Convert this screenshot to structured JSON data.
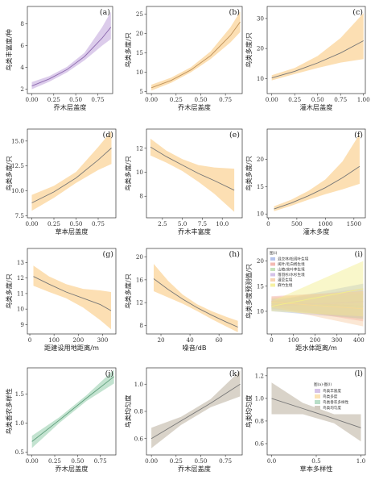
{
  "chart_data": [
    {
      "label": "(a)",
      "type": "line",
      "xlabel": "乔木层盖度",
      "ylabel": "鸟类丰富度/种",
      "xlim": [
        -0.05,
        0.92
      ],
      "ylim": [
        1.6,
        9.6
      ],
      "xticks": [
        0,
        0.25,
        0.5,
        0.75
      ],
      "xtick_labels": [
        "0.00",
        "0.25",
        "0.50",
        "0.75"
      ],
      "yticks": [
        2,
        4,
        6,
        8
      ],
      "ytick_labels": [
        "2",
        "4",
        "6",
        "8"
      ],
      "fill": "#d6c3e8",
      "line": "#8e6bb0",
      "x": [
        0,
        0.2,
        0.4,
        0.6,
        0.8,
        0.9
      ],
      "y": [
        2.3,
        2.95,
        3.8,
        5.0,
        6.7,
        7.7
      ],
      "lower": [
        2.0,
        2.7,
        3.55,
        4.65,
        6.0,
        6.6
      ],
      "upper": [
        2.65,
        3.2,
        4.05,
        5.35,
        7.7,
        9.1
      ]
    },
    {
      "label": "(b)",
      "type": "line",
      "xlabel": "乔木层盖度",
      "ylabel": "鸟类多度/只",
      "xlim": [
        -0.05,
        0.92
      ],
      "ylim": [
        4.5,
        27
      ],
      "xticks": [
        0,
        0.25,
        0.5,
        0.75
      ],
      "xtick_labels": [
        "0.00",
        "0.25",
        "0.50",
        "0.75"
      ],
      "yticks": [
        5,
        10,
        15,
        20,
        25
      ],
      "ytick_labels": [
        "5",
        "10",
        "15",
        "20",
        "25"
      ],
      "fill": "#fbd9a6",
      "line": "#c0935a",
      "x": [
        0,
        0.2,
        0.4,
        0.6,
        0.8,
        0.9
      ],
      "y": [
        6.0,
        7.9,
        10.6,
        14.3,
        19.5,
        23.0
      ],
      "lower": [
        5.3,
        7.3,
        10.0,
        13.4,
        17.7,
        20.4
      ],
      "upper": [
        6.8,
        8.6,
        11.3,
        15.4,
        21.6,
        25.7
      ]
    },
    {
      "label": "(c)",
      "type": "line",
      "xlabel": "灌木层盖度",
      "ylabel": "鸟类多度/只",
      "xlim": [
        -0.05,
        1.02
      ],
      "ylim": [
        5,
        34
      ],
      "xticks": [
        0,
        0.25,
        0.5,
        0.75,
        1.0
      ],
      "xtick_labels": [
        "0.00",
        "0.25",
        "0.50",
        "0.75",
        "1.00"
      ],
      "yticks": [
        10,
        20,
        30
      ],
      "ytick_labels": [
        "10",
        "20",
        "30"
      ],
      "fill": "#fbd9a6",
      "line": "#777777",
      "x": [
        0,
        0.25,
        0.5,
        0.75,
        1.0
      ],
      "y": [
        10.2,
        12.4,
        15.2,
        18.5,
        22.6
      ],
      "lower": [
        9.4,
        11.5,
        13.5,
        15.3,
        16.5
      ],
      "upper": [
        11.1,
        13.5,
        17.5,
        23.5,
        31.8
      ]
    },
    {
      "label": "(d)",
      "type": "line",
      "xlabel": "草本层盖度",
      "ylabel": "鸟类多度/只",
      "xlim": [
        -0.05,
        0.95
      ],
      "ylim": [
        7.3,
        16.2
      ],
      "xticks": [
        0,
        0.25,
        0.5,
        0.75
      ],
      "xtick_labels": [
        "0.00",
        "0.25",
        "0.50",
        "0.75"
      ],
      "yticks": [
        7.5,
        10.0,
        12.5,
        15.0
      ],
      "ytick_labels": [
        "7.5",
        "10.0",
        "12.5",
        "15.0"
      ],
      "fill": "#fbd9a6",
      "line": "#777777",
      "x": [
        0,
        0.25,
        0.5,
        0.75,
        0.9
      ],
      "y": [
        8.8,
        9.9,
        11.3,
        13.1,
        14.3
      ],
      "lower": [
        8.0,
        9.3,
        10.8,
        12.1,
        12.7
      ],
      "upper": [
        9.6,
        10.5,
        11.9,
        14.4,
        16.0
      ]
    },
    {
      "label": "(e)",
      "type": "line",
      "xlabel": "乔木丰富度",
      "ylabel": "鸟类多度/只",
      "xlim": [
        0.5,
        12.5
      ],
      "ylim": [
        6.2,
        13.6
      ],
      "xticks": [
        2.5,
        5,
        7.5,
        10
      ],
      "xtick_labels": [
        "2.5",
        "5.0",
        "7.5",
        "10.0"
      ],
      "yticks": [
        8,
        10,
        12
      ],
      "ytick_labels": [
        "8",
        "10",
        "12"
      ],
      "fill": "#fbd9a6",
      "line": "#777777",
      "x": [
        1,
        3,
        5,
        7,
        9,
        11.5
      ],
      "y": [
        12.1,
        11.3,
        10.6,
        9.9,
        9.3,
        8.5
      ],
      "lower": [
        11.4,
        10.8,
        10.1,
        9.2,
        8.2,
        6.7
      ],
      "upper": [
        12.8,
        11.8,
        11.1,
        10.6,
        10.4,
        10.3
      ]
    },
    {
      "label": "(f)",
      "type": "line",
      "xlabel": "灌木多度",
      "ylabel": "鸟类多度/只",
      "xlim": [
        -20,
        1700
      ],
      "ylim": [
        9.3,
        25.5
      ],
      "xticks": [
        0,
        500,
        1000,
        1500
      ],
      "xtick_labels": [
        "0",
        "500",
        "1000",
        "1500"
      ],
      "yticks": [
        10,
        15,
        20
      ],
      "ytick_labels": [
        "10",
        "15",
        "20"
      ],
      "fill": "#fbd9a6",
      "line": "#777777",
      "x": [
        100,
        400,
        700,
        1000,
        1300,
        1600
      ],
      "y": [
        10.9,
        12.0,
        13.3,
        14.8,
        16.6,
        18.7
      ],
      "lower": [
        10.5,
        11.5,
        12.6,
        13.6,
        14.5,
        15.5
      ],
      "upper": [
        11.4,
        12.6,
        14.2,
        16.3,
        19.6,
        24.6
      ]
    },
    {
      "label": "(g)",
      "type": "line",
      "xlabel": "距建设用地距离/m",
      "ylabel": "鸟类多度/只",
      "xlim": [
        -10,
        355
      ],
      "ylim": [
        8.4,
        13.9
      ],
      "xticks": [
        0,
        100,
        200,
        300
      ],
      "xtick_labels": [
        "0",
        "100",
        "200",
        "300"
      ],
      "yticks": [
        9,
        10,
        11,
        12,
        13
      ],
      "ytick_labels": [
        "9",
        "10",
        "11",
        "12",
        "13"
      ],
      "fill": "#fbd9a6",
      "line": "#777777",
      "x": [
        15,
        80,
        150,
        220,
        290,
        335
      ],
      "y": [
        12.1,
        11.6,
        11.1,
        10.7,
        10.3,
        9.9
      ],
      "lower": [
        11.5,
        11.1,
        10.7,
        10.1,
        9.3,
        8.7
      ],
      "upper": [
        12.8,
        12.1,
        11.6,
        11.3,
        11.2,
        11.1
      ]
    },
    {
      "label": "(h)",
      "type": "line",
      "xlabel": "噪音/dB",
      "ylabel": "鸟类多度/只",
      "xlim": [
        10,
        76
      ],
      "ylim": [
        6.5,
        21.5
      ],
      "xticks": [
        20,
        40,
        60
      ],
      "xtick_labels": [
        "20",
        "40",
        "60"
      ],
      "yticks": [
        8,
        12,
        16,
        20
      ],
      "ytick_labels": [
        "8",
        "12",
        "16",
        "20"
      ],
      "fill": "#fbd9a6",
      "line": "#777777",
      "x": [
        15,
        25,
        35,
        45,
        55,
        65,
        73
      ],
      "y": [
        16.2,
        14.3,
        12.6,
        11.1,
        9.8,
        8.6,
        7.7
      ],
      "lower": [
        14.0,
        12.9,
        11.8,
        10.5,
        9.1,
        7.8,
        6.8
      ],
      "upper": [
        18.8,
        15.8,
        13.4,
        11.7,
        10.5,
        9.5,
        8.8
      ]
    },
    {
      "label": "(i)",
      "type": "line",
      "xlabel": "距水体距离/m",
      "ylabel": "鸟类多度预测值/只",
      "xlim": [
        -20,
        430
      ],
      "ylim": [
        5.5,
        22.5
      ],
      "xticks": [
        0,
        100,
        200,
        300,
        400
      ],
      "xtick_labels": [
        "0",
        "100",
        "200",
        "300",
        "400"
      ],
      "yticks": [
        10,
        15,
        20
      ],
      "ytick_labels": [
        "10",
        "15",
        "20"
      ],
      "legend_title": "图(i)",
      "series": [
        {
          "name": "混交林/松阔叶生境",
          "color": "#a3b4e6",
          "x": [
            0,
            420
          ],
          "y": [
            11.0,
            12.0
          ],
          "lower": [
            10.0,
            8.5
          ],
          "upper": [
            12.0,
            15.5
          ]
        },
        {
          "name": "阔叶/毛白杨生境",
          "color": "#f0a9a0",
          "x": [
            0,
            420
          ],
          "y": [
            12.0,
            11.0
          ],
          "lower": [
            11.0,
            8.0
          ],
          "upper": [
            13.0,
            14.0
          ]
        },
        {
          "name": "山楂/栾叶李生境",
          "color": "#b6dba9",
          "x": [
            0,
            420
          ],
          "y": [
            11.5,
            11.0
          ],
          "lower": [
            10.5,
            8.5
          ],
          "upper": [
            12.5,
            13.5
          ]
        },
        {
          "name": "落羽杉/水杉生境",
          "color": "#c9b3e2",
          "x": [
            0,
            420
          ],
          "y": [
            11.2,
            11.8
          ],
          "lower": [
            10.3,
            9.0
          ],
          "upper": [
            12.1,
            14.6
          ]
        },
        {
          "name": "灌草生境",
          "color": "#f6c9a0",
          "x": [
            0,
            420
          ],
          "y": [
            11.8,
            10.5
          ],
          "lower": [
            10.8,
            7.0
          ],
          "upper": [
            12.8,
            14.0
          ]
        },
        {
          "name": "麻竹生境",
          "color": "#f2ee8a",
          "x": [
            0,
            420
          ],
          "y": [
            11.0,
            14.5
          ],
          "lower": [
            10.0,
            9.0
          ],
          "upper": [
            12.0,
            20.0
          ]
        }
      ]
    },
    {
      "label": "(j)",
      "type": "line",
      "xlabel": "乔木层盖度",
      "ylabel": "鸟类香农多样性",
      "xlim": [
        -0.05,
        0.92
      ],
      "ylim": [
        0.45,
        1.95
      ],
      "xticks": [
        0,
        0.25,
        0.5,
        0.75
      ],
      "xtick_labels": [
        "0.00",
        "0.25",
        "0.50",
        "0.75"
      ],
      "yticks": [
        0.5,
        1.0,
        1.5
      ],
      "ytick_labels": [
        "0.5",
        "1.0",
        "1.5"
      ],
      "fill": "#b9dec8",
      "line": "#5f9f7c",
      "x": [
        0,
        0.3,
        0.6,
        0.9
      ],
      "y": [
        0.68,
        1.05,
        1.43,
        1.8
      ],
      "lower": [
        0.57,
        1.0,
        1.38,
        1.68
      ],
      "upper": [
        0.78,
        1.1,
        1.48,
        1.92
      ]
    },
    {
      "label": "(k)",
      "type": "line",
      "xlabel": "乔木层盖度",
      "ylabel": "鸟类均匀度",
      "xlim": [
        -0.05,
        0.92
      ],
      "ylim": [
        0.48,
        1.12
      ],
      "xticks": [
        0,
        0.25,
        0.5,
        0.75
      ],
      "xtick_labels": [
        "0.00",
        "0.25",
        "0.50",
        "0.75"
      ],
      "yticks": [
        0.6,
        0.8,
        1.0
      ],
      "ytick_labels": [
        "0.6",
        "0.8",
        "1.0"
      ],
      "fill": "#d2cbc0",
      "line": "#777777",
      "x": [
        0,
        0.3,
        0.6,
        0.9
      ],
      "y": [
        0.6,
        0.73,
        0.86,
        1.0
      ],
      "lower": [
        0.53,
        0.7,
        0.83,
        0.91
      ],
      "upper": [
        0.68,
        0.76,
        0.89,
        1.1
      ]
    },
    {
      "label": "(l)",
      "type": "line",
      "xlabel": "草本多样性",
      "ylabel": "鸟类均匀度",
      "xlim": [
        -0.05,
        1.05
      ],
      "ylim": [
        0.5,
        1.27
      ],
      "xticks": [
        0,
        0.5,
        1.0
      ],
      "xtick_labels": [
        "0.0",
        "0.5",
        "1.0"
      ],
      "yticks": [
        0.6,
        0.8,
        1.0,
        1.2
      ],
      "ytick_labels": [
        "0.6",
        "0.8",
        "1.0",
        "1.2"
      ],
      "fill": "#d2cbc0",
      "line": "#777777",
      "x": [
        0,
        0.35,
        0.7,
        1.0
      ],
      "y": [
        1.0,
        0.91,
        0.82,
        0.74
      ],
      "lower": [
        0.86,
        0.86,
        0.78,
        0.62
      ],
      "upper": [
        1.14,
        0.96,
        0.86,
        0.86
      ]
    }
  ],
  "legend_l": {
    "title": "图(a)-图(l)",
    "items": [
      {
        "name": "鸟类丰富度",
        "color": "#d6c3e8"
      },
      {
        "name": "鸟类多度",
        "color": "#fbe3b5"
      },
      {
        "name": "鸟类香农多样性",
        "color": "#b9dec8"
      },
      {
        "name": "鸟类均匀度",
        "color": "#d2cbc0"
      }
    ]
  }
}
